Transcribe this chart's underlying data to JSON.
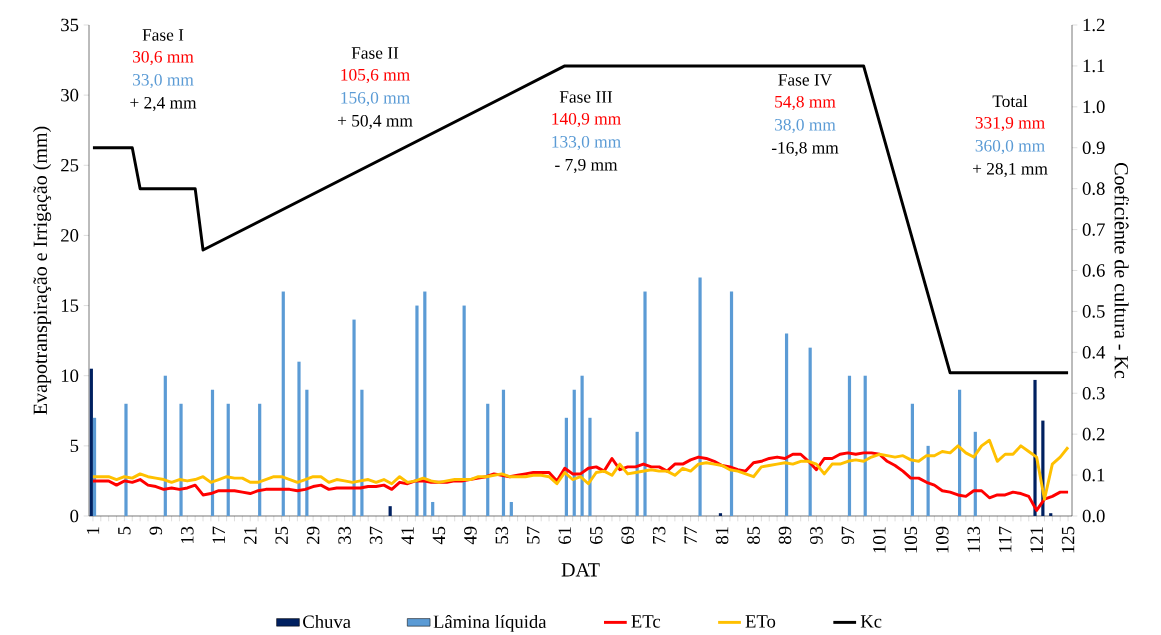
{
  "chart_data": {
    "type": "bar",
    "xlabel": "DAT",
    "ylabel": "Evapotranspiração e Irrigação (mm)",
    "y2label": "Coeficiênte de cultura - Kc",
    "categories": [
      "1",
      null,
      null,
      null,
      "5",
      null,
      null,
      null,
      "9",
      null,
      null,
      null,
      "13",
      null,
      null,
      null,
      "17",
      null,
      null,
      null,
      "21",
      null,
      null,
      null,
      "25",
      null,
      null,
      null,
      "29",
      null,
      null,
      null,
      "33",
      null,
      null,
      null,
      "37",
      null,
      null,
      null,
      "41",
      null,
      null,
      null,
      "45",
      null,
      null,
      null,
      "49",
      null,
      null,
      null,
      "53",
      null,
      null,
      null,
      "57",
      null,
      null,
      null,
      "61",
      null,
      null,
      null,
      "65",
      null,
      null,
      null,
      "69",
      null,
      null,
      null,
      "73",
      null,
      null,
      null,
      "77",
      null,
      null,
      null,
      "81",
      null,
      null,
      null,
      "85",
      null,
      null,
      null,
      "89",
      null,
      null,
      null,
      "93",
      null,
      null,
      null,
      "97",
      null,
      null,
      null,
      "101",
      null,
      null,
      null,
      "105",
      null,
      null,
      null,
      "109",
      null,
      null,
      null,
      "113",
      null,
      null,
      null,
      "117",
      null,
      null,
      null,
      "121",
      null,
      null,
      null,
      "125"
    ],
    "series": [
      {
        "name": "Chuva",
        "color": "#002060",
        "values": [
          10.5,
          null,
          null,
          null,
          null,
          null,
          null,
          null,
          null,
          null,
          null,
          null,
          null,
          null,
          null,
          null,
          null,
          null,
          null,
          null,
          null,
          null,
          null,
          null,
          null,
          null,
          null,
          null,
          null,
          null,
          null,
          null,
          null,
          null,
          null,
          null,
          null,
          null,
          0.7,
          null,
          null,
          null,
          null,
          null,
          null,
          null,
          null,
          null,
          null,
          null,
          null,
          null,
          null,
          null,
          null,
          null,
          null,
          null,
          null,
          null,
          null,
          null,
          null,
          null,
          null,
          null,
          null,
          null,
          null,
          null,
          null,
          null,
          null,
          null,
          null,
          null,
          null,
          null,
          null,
          null,
          0.2,
          null,
          null,
          null,
          null,
          null,
          null,
          null,
          null,
          null,
          null,
          null,
          null,
          null,
          null,
          null,
          null,
          null,
          null,
          null,
          null,
          null,
          null,
          null,
          null,
          null,
          null,
          null,
          null,
          null,
          null,
          null,
          null,
          null,
          null,
          null,
          null,
          null,
          null,
          null,
          9.7,
          6.8,
          0.2,
          null,
          null
        ]
      },
      {
        "name": "Lâmina líquida",
        "color": "#5b9bd5",
        "values": [
          7,
          null,
          null,
          null,
          8,
          null,
          null,
          null,
          null,
          10,
          null,
          8,
          null,
          null,
          null,
          9,
          null,
          8,
          null,
          null,
          null,
          8,
          null,
          null,
          16,
          null,
          11,
          9,
          null,
          null,
          null,
          null,
          null,
          14,
          9,
          null,
          null,
          null,
          null,
          null,
          null,
          15,
          16,
          1,
          null,
          null,
          null,
          15,
          null,
          null,
          8,
          null,
          9,
          1,
          null,
          null,
          null,
          null,
          null,
          null,
          7,
          9,
          10,
          7,
          null,
          null,
          null,
          null,
          null,
          6,
          16,
          null,
          null,
          null,
          null,
          null,
          null,
          17,
          null,
          null,
          null,
          16,
          null,
          null,
          null,
          null,
          null,
          null,
          13,
          null,
          null,
          12,
          null,
          null,
          null,
          null,
          10,
          null,
          10,
          null,
          null,
          null,
          null,
          null,
          8,
          null,
          5,
          null,
          null,
          null,
          9,
          null,
          6,
          null,
          null,
          null,
          null,
          null,
          null,
          null,
          null,
          null,
          null,
          null,
          null
        ]
      },
      {
        "name": "ETc",
        "type": "line",
        "color": "#ff0000",
        "values": [
          2.5,
          2.5,
          2.5,
          2.2,
          2.5,
          2.4,
          2.6,
          2.2,
          2.1,
          1.9,
          2.0,
          1.9,
          2.0,
          2.2,
          1.5,
          1.6,
          1.8,
          1.8,
          1.8,
          1.7,
          1.6,
          1.8,
          1.9,
          1.9,
          1.9,
          1.9,
          1.8,
          1.9,
          2.1,
          2.2,
          1.9,
          2.0,
          2.0,
          2.0,
          2.0,
          2.1,
          2.1,
          2.2,
          1.9,
          2.4,
          2.3,
          2.5,
          2.5,
          2.4,
          2.4,
          2.4,
          2.5,
          2.5,
          2.6,
          2.7,
          2.8,
          3.0,
          2.9,
          2.8,
          2.9,
          3.0,
          3.1,
          3.1,
          3.1,
          2.5,
          3.4,
          3.0,
          3.0,
          3.4,
          3.5,
          3.2,
          4.1,
          3.3,
          3.5,
          3.5,
          3.7,
          3.5,
          3.5,
          3.2,
          3.7,
          3.7,
          4.0,
          4.2,
          4.1,
          3.9,
          3.6,
          3.5,
          3.3,
          3.2,
          3.8,
          3.9,
          4.1,
          4.2,
          4.1,
          4.4,
          4.4,
          3.9,
          3.3,
          4.1,
          4.1,
          4.4,
          4.5,
          4.4,
          4.5,
          4.5,
          4.4,
          3.9,
          3.6,
          3.2,
          2.7,
          2.7,
          2.4,
          2.2,
          1.8,
          1.7,
          1.5,
          1.4,
          1.8,
          1.8,
          1.3,
          1.5,
          1.5,
          1.7,
          1.6,
          1.4,
          0.4,
          1.2,
          1.4,
          1.7,
          1.7
        ]
      },
      {
        "name": "ETo",
        "type": "line",
        "color": "#ffc000",
        "values": [
          2.8,
          2.8,
          2.8,
          2.6,
          2.8,
          2.7,
          3.0,
          2.8,
          2.7,
          2.6,
          2.4,
          2.6,
          2.5,
          2.6,
          2.8,
          2.4,
          2.6,
          2.8,
          2.7,
          2.7,
          2.4,
          2.4,
          2.6,
          2.8,
          2.8,
          2.6,
          2.4,
          2.6,
          2.8,
          2.8,
          2.4,
          2.6,
          2.5,
          2.4,
          2.5,
          2.6,
          2.4,
          2.6,
          2.3,
          2.8,
          2.4,
          2.5,
          2.7,
          2.5,
          2.4,
          2.5,
          2.6,
          2.6,
          2.6,
          2.8,
          2.8,
          2.9,
          3.0,
          2.8,
          2.8,
          2.8,
          2.9,
          2.9,
          2.8,
          2.3,
          3.1,
          2.6,
          2.8,
          2.3,
          3.1,
          3.2,
          2.9,
          3.7,
          3.0,
          3.1,
          3.2,
          3.3,
          3.2,
          3.2,
          2.9,
          3.4,
          3.2,
          3.7,
          3.8,
          3.7,
          3.6,
          3.3,
          3.2,
          3.0,
          2.8,
          3.5,
          3.6,
          3.7,
          3.8,
          3.7,
          3.9,
          3.9,
          3.7,
          3.0,
          3.7,
          3.7,
          3.9,
          4.0,
          3.9,
          4.2,
          4.4,
          4.3,
          4.2,
          4.3,
          4.0,
          3.9,
          4.3,
          4.3,
          4.6,
          4.5,
          5.0,
          4.5,
          4.2,
          5.0,
          5.4,
          3.9,
          4.4,
          4.4,
          5.0,
          4.6,
          4.2,
          1.2,
          3.7,
          4.2,
          4.9
        ]
      },
      {
        "name": "Kc",
        "type": "line",
        "axis": "y2",
        "color": "#000000",
        "values": [
          0.9,
          null,
          null,
          null,
          null,
          0.9,
          0.8,
          null,
          null,
          null,
          null,
          null,
          null,
          0.8,
          0.65,
          null,
          null,
          null,
          null,
          null,
          null,
          null,
          null,
          null,
          null,
          null,
          null,
          null,
          null,
          null,
          null,
          null,
          null,
          null,
          null,
          null,
          null,
          null,
          null,
          null,
          null,
          null,
          null,
          null,
          null,
          null,
          null,
          null,
          null,
          null,
          null,
          null,
          null,
          null,
          null,
          null,
          null,
          null,
          null,
          null,
          1.1,
          null,
          null,
          null,
          null,
          null,
          null,
          null,
          null,
          null,
          null,
          null,
          null,
          null,
          null,
          null,
          null,
          null,
          null,
          null,
          null,
          null,
          null,
          null,
          null,
          null,
          null,
          null,
          null,
          null,
          null,
          null,
          null,
          null,
          null,
          null,
          null,
          null,
          1.1,
          null,
          null,
          null,
          null,
          null,
          null,
          null,
          null,
          null,
          null,
          0.35,
          null,
          null,
          null,
          null,
          null,
          null,
          null,
          null,
          null,
          null,
          null,
          null,
          null,
          null,
          0.35
        ]
      }
    ],
    "ylim": [
      0,
      35
    ],
    "yticks": [
      0,
      5,
      10,
      15,
      20,
      25,
      30,
      35
    ],
    "y2lim": [
      0,
      1.2
    ],
    "y2ticks": [
      {
        "value": 0,
        "label": "0.0"
      },
      {
        "value": 0.1,
        "label": "0.1"
      },
      {
        "value": 0.2,
        "label": "0.2"
      },
      {
        "value": 0.3,
        "label": "0.3"
      },
      {
        "value": 0.4,
        "label": "0.4"
      },
      {
        "value": 0.5,
        "label": "0.5"
      },
      {
        "value": 0.6,
        "label": "0.6"
      },
      {
        "value": 0.7,
        "label": "0.7"
      },
      {
        "value": 0.8,
        "label": "0.8"
      },
      {
        "value": 0.9,
        "label": "0.9"
      },
      {
        "value": 1.0,
        "label": "1.0"
      },
      {
        "value": 1.1,
        "label": "1.1"
      },
      {
        "value": 1.2,
        "label": "1.2"
      }
    ],
    "legend": "bottom",
    "annotations": [
      "Fase I",
      "30,6 mm",
      "33,0 mm",
      "+ 2,4 mm",
      "Fase II",
      "105,6 mm",
      "156,0 mm",
      "+ 50,4 mm",
      "Fase III",
      "140,9 mm",
      "133,0 mm",
      "- 7,9 mm",
      "Fase IV",
      "54,8 mm",
      "38,0 mm",
      "-16,8 mm",
      "Total",
      "331,9 mm",
      "360,0 mm",
      "+ 28,1 mm"
    ]
  }
}
